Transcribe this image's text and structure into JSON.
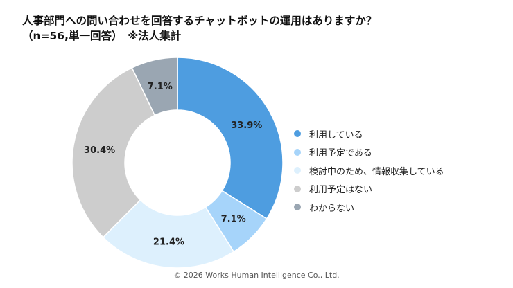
{
  "chart_data": {
    "type": "pie",
    "donut": true,
    "title": "人事部門への問い合わせを回答するチャットボットの運用はありますか？",
    "subtitle": "（n=56,単一回答）　※法人集計",
    "categories": [
      "利用している",
      "利用予定である",
      "検討中のため、情報収集している",
      "利用予定はない",
      "わからない"
    ],
    "values": [
      33.9,
      7.1,
      21.4,
      30.4,
      7.1
    ],
    "labels": [
      "33.9%",
      "7.1%",
      "21.4%",
      "30.4%",
      "7.1%"
    ],
    "colors": [
      "#4E9DE0",
      "#A6D4FA",
      "#DDF0FD",
      "#CDCDCD",
      "#9AA6B2"
    ],
    "legend_position": "right"
  },
  "footer": "© 2026 Works Human Intelligence Co., Ltd."
}
